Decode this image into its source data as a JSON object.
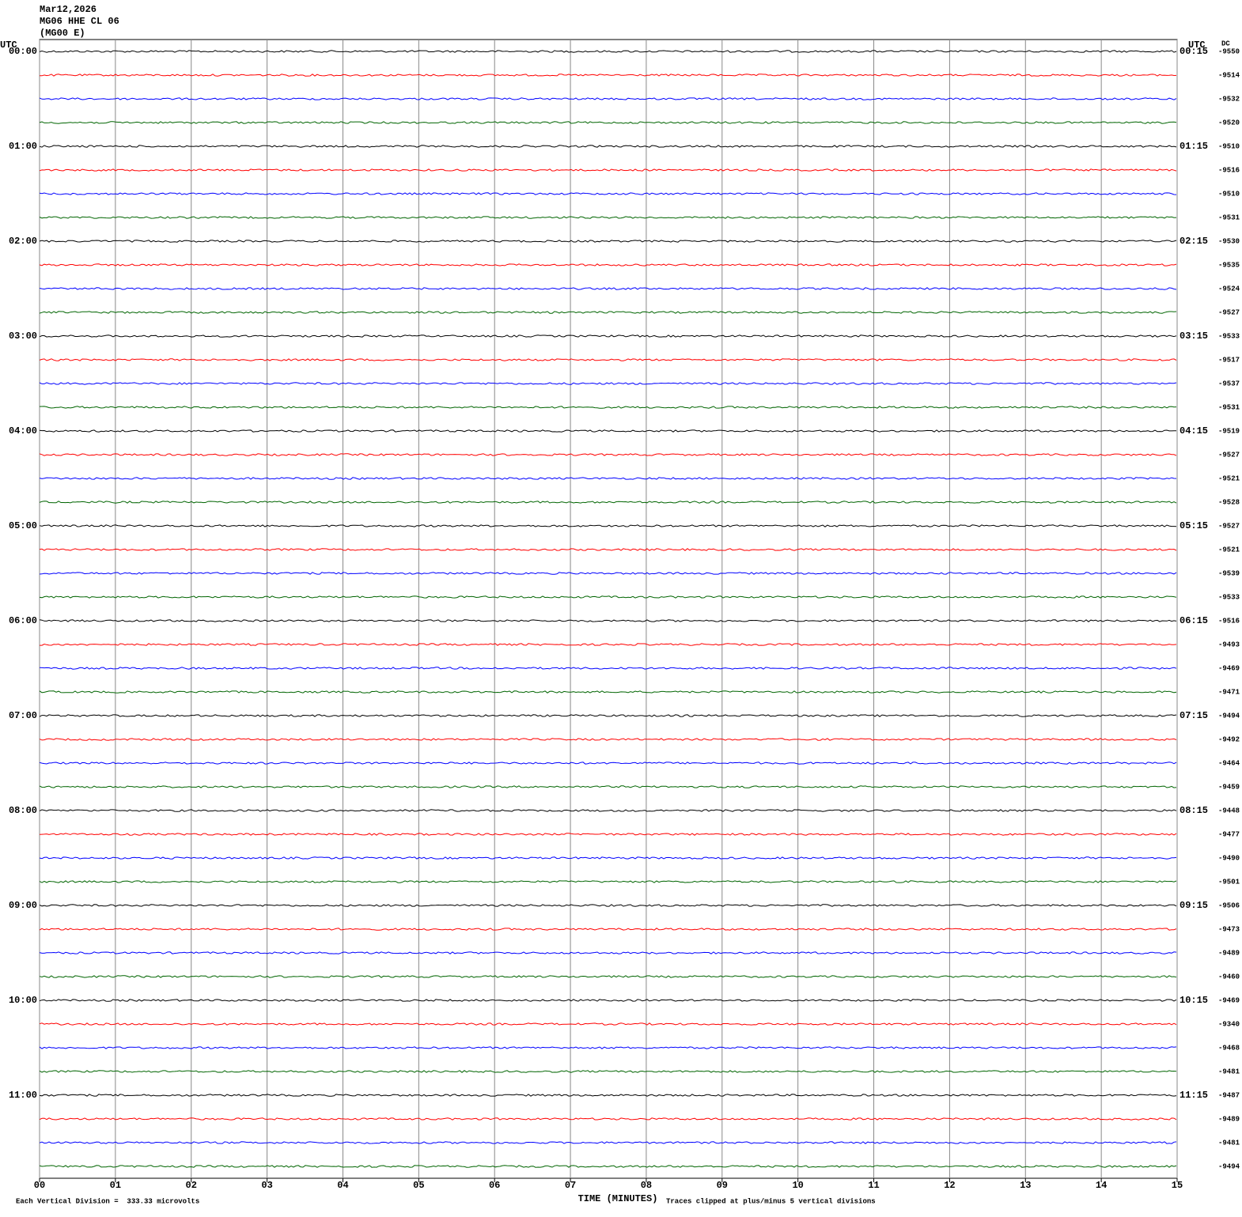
{
  "chart_data": {
    "type": "helicorder",
    "title_lines": [
      "Mar12,2026",
      "MG06 HHE CL 06",
      "(MG00 E)"
    ],
    "left_axis_label": "UTC",
    "right_axis_label": "UTC",
    "dc_label": "DC",
    "xlabel": "TIME (MINUTES)",
    "scale_note": "Each Vertical Division =  333.33 microvolts",
    "clip_note": "Traces clipped at plus/minus 5 vertical divisions",
    "xlim": [
      0,
      15
    ],
    "xticks": [
      {
        "value": 0,
        "label": "00"
      },
      {
        "value": 1,
        "label": "01"
      },
      {
        "value": 2,
        "label": "02"
      },
      {
        "value": 3,
        "label": "03"
      },
      {
        "value": 4,
        "label": "04"
      },
      {
        "value": 5,
        "label": "05"
      },
      {
        "value": 6,
        "label": "06"
      },
      {
        "value": 7,
        "label": "07"
      },
      {
        "value": 8,
        "label": "08"
      },
      {
        "value": 9,
        "label": "09"
      },
      10,
      11,
      12,
      13,
      14,
      15
    ],
    "grid": true,
    "colors": [
      "#000000",
      "#ff0000",
      "#0000ff",
      "#006400"
    ],
    "left_labels": [
      "00:00",
      "01:00",
      "02:00",
      "03:00",
      "04:00",
      "05:00",
      "06:00",
      "07:00",
      "08:00",
      "09:00",
      "10:00",
      "11:00"
    ],
    "right_labels": [
      "00:15",
      "01:15",
      "02:15",
      "03:15",
      "04:15",
      "05:15",
      "06:15",
      "07:15",
      "08:15",
      "09:15",
      "10:15",
      "11:15"
    ],
    "dc": [
      -9550,
      -9514,
      -9532,
      -9520,
      -9510,
      -9516,
      -9510,
      -9531,
      -9530,
      -9535,
      -9524,
      -9527,
      -9533,
      -9517,
      -9537,
      -9531,
      -9519,
      -9527,
      -9521,
      -9528,
      -9527,
      -9521,
      -9539,
      -9533,
      -9516,
      -9493,
      -9469,
      -9471,
      -9494,
      -9492,
      -9464,
      -9459,
      -9448,
      -9477,
      -9490,
      -9501,
      -9506,
      -9473,
      -9489,
      -9460,
      -9469,
      -9340,
      -9468,
      -9481,
      -9487,
      -9489,
      -9481,
      -9494
    ]
  }
}
